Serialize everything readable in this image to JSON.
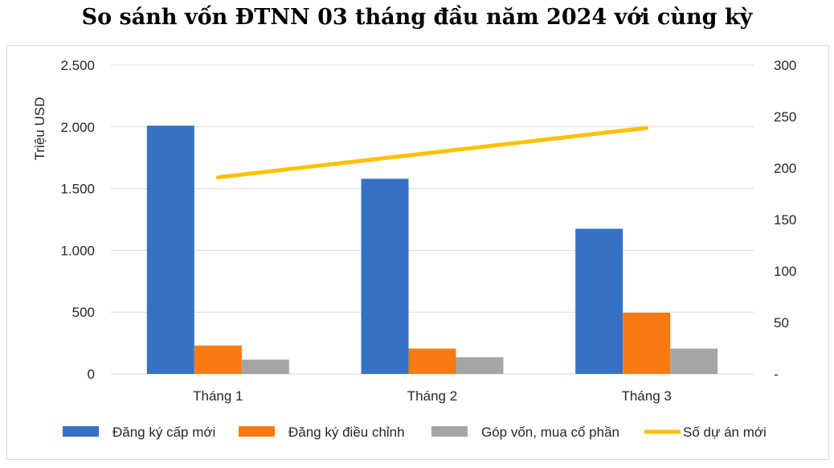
{
  "chart_data": {
    "type": "bar",
    "title": "So sánh vốn ĐTNN 03 tháng đầu năm 2024 với cùng kỳ",
    "ylabel": "Triệu USD",
    "y2label": "",
    "categories": [
      "Tháng 1",
      "Tháng 2",
      "Tháng 3"
    ],
    "ylim": [
      0,
      2500
    ],
    "y_ticks": [
      0,
      500,
      1000,
      1500,
      2000,
      2500
    ],
    "y_tick_labels": [
      "0",
      "500",
      "1.000",
      "1.500",
      "2.000",
      "2.500"
    ],
    "y2lim": [
      0,
      300
    ],
    "y2_ticks": [
      0,
      50,
      100,
      150,
      200,
      250,
      300
    ],
    "y2_tick_labels": [
      "-",
      "50",
      "100",
      "150",
      "200",
      "250",
      "300"
    ],
    "grid": true,
    "legend_position": "bottom",
    "series": [
      {
        "name": "Đăng ký cấp mới",
        "type": "bar",
        "axis": "left",
        "color": "#3572C6",
        "values": [
          2010,
          1580,
          1175
        ]
      },
      {
        "name": "Đăng ký điều chỉnh",
        "type": "bar",
        "axis": "left",
        "color": "#F97A12",
        "values": [
          230,
          205,
          495
        ]
      },
      {
        "name": "Góp vốn, mua cổ phần",
        "type": "bar",
        "axis": "left",
        "color": "#A5A5A5",
        "values": [
          115,
          135,
          205
        ]
      },
      {
        "name": "Số dự án mới",
        "type": "line",
        "axis": "right",
        "color": "#FFC000",
        "values": [
          191,
          215,
          239
        ]
      }
    ]
  }
}
